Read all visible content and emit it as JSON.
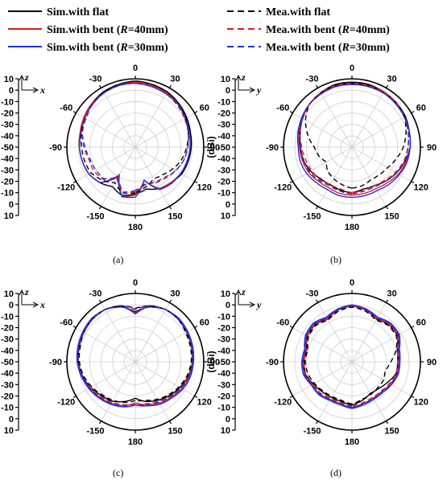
{
  "legend": [
    {
      "id": "sim_flat",
      "parts": [
        {
          "t": "Sim.with flat",
          "i": false
        }
      ],
      "color": "#000000",
      "dash": false
    },
    {
      "id": "sim_r40",
      "parts": [
        {
          "t": "Sim.with bent (",
          "i": false
        },
        {
          "t": "R",
          "i": true
        },
        {
          "t": "=40mm)",
          "i": false
        }
      ],
      "color": "#e31a1c",
      "dash": false
    },
    {
      "id": "sim_r30",
      "parts": [
        {
          "t": "Sim.with bent (",
          "i": false
        },
        {
          "t": "R",
          "i": true
        },
        {
          "t": "=30mm)",
          "i": false
        }
      ],
      "color": "#1f2fe0",
      "dash": false
    },
    {
      "id": "mea_flat",
      "parts": [
        {
          "t": "Mea.with flat",
          "i": false
        }
      ],
      "color": "#000000",
      "dash": true
    },
    {
      "id": "mea_r40",
      "parts": [
        {
          "t": "Mea.with bent (",
          "i": false
        },
        {
          "t": "R",
          "i": true
        },
        {
          "t": "=40mm)",
          "i": false
        }
      ],
      "color": "#e31a1c",
      "dash": true
    },
    {
      "id": "mea_r30",
      "parts": [
        {
          "t": "Mea.with bent (",
          "i": false
        },
        {
          "t": "R",
          "i": true
        },
        {
          "t": "=30mm)",
          "i": false
        }
      ],
      "color": "#1f2fe0",
      "dash": true
    }
  ],
  "chart_data": [
    {
      "type": "polar",
      "caption": "(a)",
      "ylabel": "(dBi)",
      "plane_axes": [
        "z",
        "x"
      ],
      "r_ticks": [
        "10",
        "0",
        "-10",
        "-20",
        "-30",
        "-40",
        "-50",
        "-40",
        "-30",
        "-20",
        "-10",
        "0",
        "10"
      ],
      "rlim": [
        -50,
        10
      ],
      "angle_labels": [
        "0",
        "30",
        "60",
        "90",
        "120",
        "150",
        "180",
        "-150",
        "-120",
        "-90",
        "-60",
        "-30"
      ],
      "angles_deg": [
        -180,
        -165,
        -150,
        -135,
        -120,
        -105,
        -90,
        -75,
        -60,
        -45,
        -30,
        -15,
        0,
        15,
        30,
        45,
        60,
        75,
        90,
        105,
        120,
        135,
        150,
        165,
        180
      ],
      "series": [
        {
          "id": "sim_flat",
          "values": [
            -9,
            -6,
            -10,
            -6,
            -3,
            -2,
            -1,
            0,
            2,
            4,
            6,
            7,
            8,
            7,
            6,
            4,
            2,
            0,
            -1,
            -2,
            -3,
            -6,
            -8,
            -12,
            -9
          ]
        },
        {
          "id": "sim_r40",
          "values": [
            -8,
            -5,
            -22,
            -6,
            -3,
            -2,
            -1,
            0,
            2,
            4,
            5,
            6,
            7,
            6,
            5,
            3,
            1,
            -1,
            -2,
            -3,
            -4,
            -6,
            -8,
            -20,
            -8
          ]
        },
        {
          "id": "sim_r30",
          "values": [
            -6,
            -5,
            -20,
            -6,
            -3,
            -2,
            -1,
            -1,
            1,
            3,
            5,
            6,
            6,
            5,
            4,
            3,
            1,
            -1,
            -2,
            -3,
            -4,
            -5,
            -7,
            -20,
            -6
          ]
        },
        {
          "id": "mea_flat",
          "values": [
            -10,
            -8,
            -14,
            -9,
            -5,
            -4,
            -3,
            -1,
            1,
            3,
            6,
            7,
            8,
            7,
            6,
            4,
            1,
            -2,
            -5,
            -8,
            -12,
            -16,
            -18,
            -14,
            -10
          ]
        },
        {
          "id": "mea_r40",
          "values": [
            -11,
            -8,
            -18,
            -10,
            -8,
            -8,
            -5,
            -2,
            1,
            3,
            5,
            6,
            7,
            6,
            5,
            3,
            0,
            -2,
            -4,
            -6,
            -9,
            -13,
            -15,
            -16,
            -11
          ]
        },
        {
          "id": "mea_r30",
          "values": [
            -12,
            -9,
            -20,
            -11,
            -10,
            -9,
            -6,
            -2,
            0,
            3,
            5,
            6,
            6,
            5,
            4,
            2,
            0,
            -2,
            -4,
            -6,
            -9,
            -12,
            -14,
            -17,
            -12
          ]
        }
      ]
    },
    {
      "type": "polar",
      "caption": "(b)",
      "ylabel": "(dBi)",
      "plane_axes": [
        "z",
        "y"
      ],
      "r_ticks": [
        "10",
        "0",
        "-10",
        "-20",
        "-30",
        "-40",
        "-50",
        "-40",
        "-30",
        "-20",
        "-10",
        "0",
        "10"
      ],
      "rlim": [
        -50,
        10
      ],
      "angle_labels": [
        "0",
        "30",
        "60",
        "90",
        "120",
        "150",
        "180",
        "-150",
        "-120",
        "-90",
        "-60",
        "-30"
      ],
      "angles_deg": [
        -180,
        -165,
        -150,
        -135,
        -120,
        -105,
        -90,
        -75,
        -60,
        -45,
        -30,
        -15,
        0,
        15,
        30,
        45,
        60,
        75,
        90,
        105,
        120,
        135,
        150,
        165,
        180
      ],
      "series": [
        {
          "id": "sim_flat",
          "values": [
            -10,
            -11,
            -12,
            -11,
            -8,
            -6,
            -5,
            -3,
            0,
            3,
            5,
            7,
            7,
            7,
            6,
            5,
            4,
            2,
            1,
            -2,
            -5,
            -8,
            -11,
            -12,
            -10
          ]
        },
        {
          "id": "sim_r40",
          "values": [
            -8,
            -8,
            -9,
            -8,
            -6,
            -5,
            -4,
            -2,
            1,
            3,
            5,
            6,
            6,
            6,
            6,
            5,
            3,
            2,
            1,
            -1,
            -3,
            -6,
            -8,
            -8,
            -8
          ]
        },
        {
          "id": "sim_r30",
          "values": [
            -6,
            -6,
            -7,
            -6,
            -4,
            -3,
            -3,
            -1,
            1,
            3,
            4,
            5,
            5,
            5,
            5,
            4,
            3,
            2,
            1,
            0,
            -2,
            -4,
            -6,
            -6,
            -6
          ]
        },
        {
          "id": "mea_flat",
          "values": [
            -14,
            -16,
            -18,
            -20,
            -24,
            -20,
            -17,
            -10,
            -3,
            3,
            5,
            6,
            6,
            6,
            5,
            5,
            3,
            -1,
            -5,
            -10,
            -14,
            -16,
            -17,
            -15,
            -14
          ]
        },
        {
          "id": "mea_r40",
          "values": [
            -10,
            -12,
            -12,
            -10,
            -9,
            -8,
            -6,
            -3,
            0,
            3,
            5,
            6,
            6,
            6,
            6,
            5,
            3,
            1,
            -1,
            -3,
            -6,
            -9,
            -11,
            -11,
            -10
          ]
        },
        {
          "id": "mea_r30",
          "values": [
            -9,
            -10,
            -11,
            -9,
            -7,
            -6,
            -5,
            -2,
            0,
            3,
            4,
            5,
            5,
            5,
            5,
            4,
            3,
            1,
            -1,
            -2,
            -5,
            -8,
            -10,
            -10,
            -9
          ]
        }
      ]
    },
    {
      "type": "polar",
      "caption": "(c)",
      "ylabel": "(dBi)",
      "plane_axes": [
        "z",
        "x"
      ],
      "r_ticks": [
        "10",
        "0",
        "-10",
        "-20",
        "-30",
        "-40",
        "-50",
        "-40",
        "-30",
        "-20",
        "-10",
        "0",
        "10"
      ],
      "rlim": [
        -50,
        10
      ],
      "angle_labels": [
        "0",
        "30",
        "60",
        "90",
        "120",
        "150",
        "180",
        "-150",
        "-120",
        "-90",
        "-60",
        "-30"
      ],
      "angles_deg": [
        -180,
        -165,
        -150,
        -135,
        -120,
        -105,
        -90,
        -75,
        -60,
        -45,
        -30,
        -15,
        0,
        15,
        30,
        45,
        60,
        75,
        90,
        105,
        120,
        135,
        150,
        165,
        180
      ],
      "series": [
        {
          "id": "sim_flat",
          "values": [
            -18,
            -14,
            -10,
            -8,
            -5,
            -2,
            0,
            1,
            2,
            3,
            3,
            0,
            -6,
            0,
            3,
            3,
            2,
            1,
            0,
            -2,
            -5,
            -8,
            -11,
            -14,
            -18
          ]
        },
        {
          "id": "sim_r40",
          "values": [
            -14,
            -10,
            -8,
            -6,
            -4,
            -1,
            1,
            2,
            3,
            4,
            3,
            1,
            -7,
            1,
            3,
            4,
            3,
            2,
            1,
            -1,
            -3,
            -6,
            -8,
            -11,
            -14
          ]
        },
        {
          "id": "sim_r30",
          "values": [
            -12,
            -9,
            -7,
            -5,
            -3,
            -1,
            1,
            2,
            3,
            4,
            3,
            1,
            -8,
            1,
            3,
            4,
            3,
            2,
            1,
            0,
            -2,
            -5,
            -7,
            -10,
            -12
          ]
        },
        {
          "id": "mea_flat",
          "values": [
            -16,
            -13,
            -11,
            -9,
            -6,
            -3,
            -1,
            0,
            2,
            3,
            3,
            1,
            -3,
            1,
            3,
            3,
            1,
            0,
            -1,
            -3,
            -6,
            -9,
            -12,
            -15,
            -16
          ]
        },
        {
          "id": "mea_r40",
          "values": [
            -13,
            -11,
            -9,
            -7,
            -5,
            -2,
            0,
            1,
            2,
            3,
            3,
            1,
            -4,
            1,
            3,
            3,
            2,
            1,
            0,
            -2,
            -4,
            -7,
            -10,
            -12,
            -13
          ]
        },
        {
          "id": "mea_r30",
          "values": [
            -12,
            -10,
            -8,
            -6,
            -4,
            -2,
            0,
            1,
            2,
            3,
            3,
            1,
            -4,
            1,
            3,
            3,
            2,
            1,
            0,
            -1,
            -4,
            -7,
            -9,
            -11,
            -12
          ]
        }
      ]
    },
    {
      "type": "polar",
      "caption": "(d)",
      "ylabel": "(dBi)",
      "plane_axes": [
        "z",
        "y"
      ],
      "r_ticks": [
        "10",
        "0",
        "-10",
        "-20",
        "-30",
        "-40",
        "-50",
        "-40",
        "-30",
        "-20",
        "-10",
        "0",
        "10"
      ],
      "rlim": [
        -50,
        10
      ],
      "angle_labels": [
        "0",
        "30",
        "60",
        "90",
        "120",
        "150",
        "180",
        "-150",
        "-120",
        "-90",
        "-60",
        "-30"
      ],
      "angles_deg": [
        -180,
        -165,
        -150,
        -135,
        -120,
        -105,
        -90,
        -75,
        -60,
        -45,
        -30,
        -15,
        0,
        15,
        30,
        45,
        60,
        75,
        90,
        105,
        120,
        135,
        150,
        165,
        180
      ],
      "series": [
        {
          "id": "sim_flat",
          "values": [
            -12,
            -14,
            -14,
            -13,
            -11,
            -8,
            -8,
            -9,
            -5,
            -4,
            -7,
            -3,
            -1,
            -3,
            -7,
            -4,
            -4,
            -9,
            -10,
            -10,
            -14,
            -17,
            -18,
            -15,
            -12
          ]
        },
        {
          "id": "sim_r40",
          "values": [
            -10,
            -12,
            -12,
            -10,
            -10,
            -7,
            -7,
            -8,
            -4,
            -3,
            -6,
            -2,
            -1,
            -2,
            -6,
            -3,
            -3,
            -8,
            -9,
            -9,
            -11,
            -13,
            -13,
            -12,
            -10
          ]
        },
        {
          "id": "sim_r30",
          "values": [
            -9,
            -11,
            -11,
            -9,
            -9,
            -6,
            -6,
            -7,
            -3,
            -2,
            -5,
            -2,
            0,
            -2,
            -5,
            -2,
            -2,
            -7,
            -8,
            -8,
            -10,
            -12,
            -12,
            -11,
            -9
          ]
        },
        {
          "id": "mea_flat",
          "values": [
            -13,
            -15,
            -15,
            -14,
            -12,
            -10,
            -9,
            -10,
            -6,
            -5,
            -8,
            -4,
            -2,
            -4,
            -8,
            -5,
            -5,
            -10,
            -16,
            -20,
            -18,
            -18,
            -17,
            -16,
            -13
          ]
        },
        {
          "id": "mea_r40",
          "values": [
            -11,
            -13,
            -13,
            -11,
            -11,
            -8,
            -8,
            -9,
            -5,
            -4,
            -7,
            -3,
            -1,
            -3,
            -7,
            -4,
            -4,
            -9,
            -10,
            -10,
            -12,
            -14,
            -14,
            -13,
            -11
          ]
        },
        {
          "id": "mea_r30",
          "values": [
            -10,
            -12,
            -12,
            -10,
            -10,
            -7,
            -7,
            -8,
            -4,
            -3,
            -6,
            -3,
            -1,
            -3,
            -6,
            -3,
            -3,
            -8,
            -9,
            -9,
            -11,
            -13,
            -13,
            -12,
            -10
          ]
        }
      ]
    }
  ]
}
